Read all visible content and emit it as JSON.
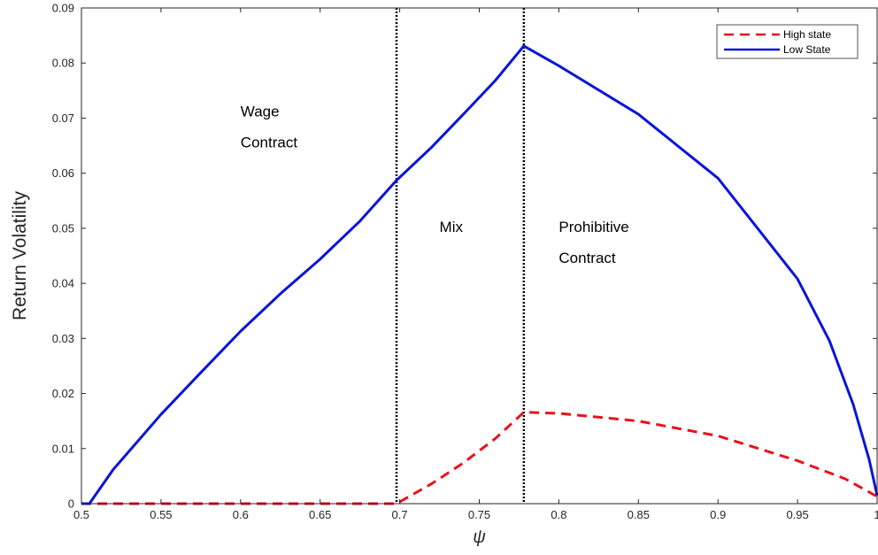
{
  "chart_data": {
    "type": "line",
    "xlabel": "ψ",
    "ylabel": "Return Volatility",
    "xlim": [
      0.5,
      1.0
    ],
    "ylim": [
      0,
      0.09
    ],
    "xticks": [
      "0.5",
      "0.55",
      "0.6",
      "0.65",
      "0.7",
      "0.75",
      "0.8",
      "0.85",
      "0.9",
      "0.95",
      "1"
    ],
    "yticks": [
      "0",
      "0.01",
      "0.02",
      "0.03",
      "0.04",
      "0.05",
      "0.06",
      "0.07",
      "0.08",
      "0.09"
    ],
    "grid": false,
    "legend_position": "top-right",
    "vertical_lines": [
      0.698,
      0.778
    ],
    "annotations": [
      {
        "text": "Wage",
        "x": 0.6,
        "y": 0.0703
      },
      {
        "text": "Contract",
        "x": 0.6,
        "y": 0.0647
      },
      {
        "text": "Mix",
        "x": 0.725,
        "y": 0.0493
      },
      {
        "text": "Prohibitive",
        "x": 0.8,
        "y": 0.0493
      },
      {
        "text": "Contract",
        "x": 0.8,
        "y": 0.0437
      }
    ],
    "series": [
      {
        "name": "High state",
        "color": "#e8121c",
        "style": "dashed",
        "points": [
          [
            0.5,
            0
          ],
          [
            0.55,
            0
          ],
          [
            0.6,
            0
          ],
          [
            0.65,
            0
          ],
          [
            0.698,
            0
          ],
          [
            0.72,
            0.0036
          ],
          [
            0.74,
            0.0074
          ],
          [
            0.76,
            0.0118
          ],
          [
            0.778,
            0.0166
          ],
          [
            0.8,
            0.0164
          ],
          [
            0.85,
            0.015
          ],
          [
            0.9,
            0.0123
          ],
          [
            0.95,
            0.0078
          ],
          [
            0.98,
            0.0045
          ],
          [
            1.0,
            0.0013
          ]
        ]
      },
      {
        "name": "Low State",
        "color": "#0a14d8",
        "style": "solid",
        "points": [
          [
            0.5,
            0
          ],
          [
            0.505,
            0
          ],
          [
            0.52,
            0.0062
          ],
          [
            0.55,
            0.0162
          ],
          [
            0.575,
            0.0238
          ],
          [
            0.6,
            0.0313
          ],
          [
            0.625,
            0.0381
          ],
          [
            0.65,
            0.0444
          ],
          [
            0.675,
            0.0513
          ],
          [
            0.698,
            0.0587
          ],
          [
            0.72,
            0.0647
          ],
          [
            0.74,
            0.0707
          ],
          [
            0.76,
            0.0768
          ],
          [
            0.778,
            0.0831
          ],
          [
            0.8,
            0.0795
          ],
          [
            0.85,
            0.0707
          ],
          [
            0.9,
            0.0591
          ],
          [
            0.95,
            0.0408
          ],
          [
            0.97,
            0.0296
          ],
          [
            0.985,
            0.018
          ],
          [
            0.995,
            0.008
          ],
          [
            1.0,
            0.0015
          ]
        ]
      }
    ]
  }
}
